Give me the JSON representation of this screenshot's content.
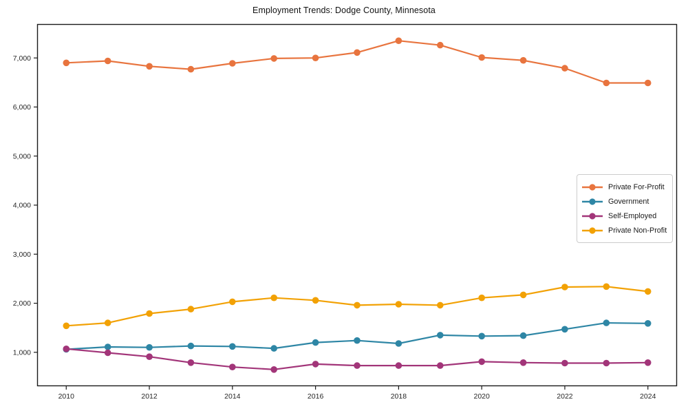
{
  "chart_data": {
    "type": "line",
    "title": "Employment Trends: Dodge County, Minnesota",
    "xlabel": "",
    "ylabel": "",
    "x": [
      2010,
      2011,
      2012,
      2013,
      2014,
      2015,
      2016,
      2017,
      2018,
      2019,
      2020,
      2021,
      2022,
      2023,
      2024
    ],
    "series": [
      {
        "name": "Private For-Profit",
        "color": "#e8743e",
        "values": [
          6900,
          6940,
          6830,
          6770,
          6890,
          6990,
          7000,
          7110,
          7350,
          7260,
          7010,
          6950,
          6790,
          6490,
          6490
        ]
      },
      {
        "name": "Government",
        "color": "#2e86a5",
        "values": [
          1060,
          1110,
          1100,
          1130,
          1120,
          1080,
          1200,
          1240,
          1180,
          1350,
          1330,
          1340,
          1470,
          1600,
          1590
        ]
      },
      {
        "name": "Self-Employed",
        "color": "#a23579",
        "values": [
          1070,
          990,
          910,
          790,
          700,
          650,
          760,
          730,
          730,
          730,
          810,
          790,
          780,
          780,
          790
        ]
      },
      {
        "name": "Private Non-Profit",
        "color": "#f2a104",
        "values": [
          1540,
          1600,
          1790,
          1880,
          2030,
          2110,
          2060,
          1960,
          1980,
          1960,
          2110,
          2170,
          2330,
          2340,
          2240
        ]
      }
    ],
    "x_ticks": [
      2010,
      2012,
      2014,
      2016,
      2018,
      2020,
      2022,
      2024
    ],
    "y_ticks": [
      1000,
      2000,
      3000,
      4000,
      5000,
      6000,
      7000
    ],
    "y_tick_labels": [
      "1,000",
      "2,000",
      "3,000",
      "4,000",
      "5,000",
      "6,000",
      "7,000"
    ],
    "xlim": [
      2009.3,
      2024.7
    ],
    "ylim": [
      310,
      7690
    ],
    "grid": false,
    "legend_position": "center-right",
    "axis_color": "#1a1a1a",
    "tick_label_color": "#262626"
  }
}
